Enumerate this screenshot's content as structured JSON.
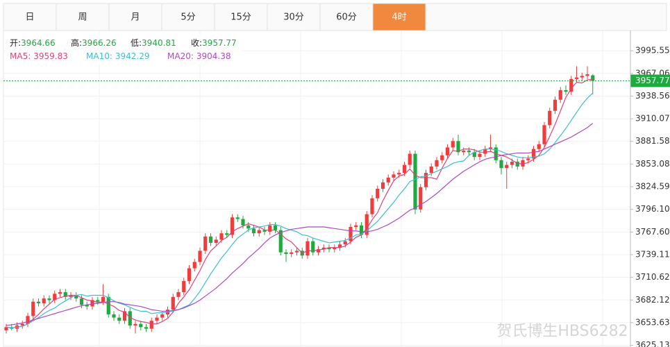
{
  "tabs": [
    "日",
    "周",
    "月",
    "5分",
    "15分",
    "30分",
    "60分",
    "4时"
  ],
  "active_tab": 7,
  "watermark": "贺氏博生HBS6282",
  "chart_data": {
    "type": "candlestick",
    "info": [
      {
        "label": "开:",
        "value": 3964.66
      },
      {
        "label": "高:",
        "value": 3966.26
      },
      {
        "label": "低:",
        "value": 3940.81
      },
      {
        "label": "收:",
        "value": 3957.77
      }
    ],
    "up_color": "#f03c3c",
    "down_color": "#1faa3f",
    "price_line_color": "#1faa3f",
    "ylim": [
      3623,
      4021
    ],
    "yticks": [
      3995.55,
      3967.06,
      3938.56,
      3910.07,
      3881.58,
      3853.08,
      3824.59,
      {
        "value": 3796.1,
        "label": "3796.10"
      },
      {
        "value": 3767.6,
        "label": "3767.60"
      },
      3739.11,
      3710.62,
      3682.12,
      3653.63,
      3625.13
    ],
    "grid": true,
    "open": [
      3644,
      3648,
      3646,
      3650,
      3652,
      3662,
      3680,
      3678,
      3684,
      3682,
      3690,
      3692,
      3686,
      3688,
      3684,
      3676,
      3674,
      3682,
      3680,
      3686,
      3664,
      3660,
      3656,
      3668,
      3650,
      3652,
      3648,
      3646,
      3656,
      3660,
      3664,
      3670,
      3686,
      3692,
      3706,
      3722,
      3730,
      3744,
      3762,
      3754,
      3758,
      3766,
      3764,
      3786,
      3784,
      3776,
      3772,
      3766,
      3770,
      3768,
      3776,
      3770,
      3742,
      3740,
      3742,
      3744,
      3738,
      3756,
      3742,
      3746,
      3748,
      3746,
      3748,
      3752,
      3756,
      3774,
      3776,
      3764,
      3790,
      3810,
      3822,
      3830,
      3836,
      3840,
      3842,
      3852,
      3866,
      3796,
      3824,
      3842,
      3850,
      3858,
      3864,
      3874,
      3882,
      3868,
      3870,
      3868,
      3862,
      3866,
      3872,
      3874,
      3858,
      3848,
      3852,
      3856,
      3850,
      3858,
      3860,
      3872,
      3878,
      3902,
      3920,
      3934,
      3946,
      3944,
      3960,
      3962,
      3964,
      3964.66
    ],
    "high": [
      3652,
      3652,
      3654,
      3656,
      3666,
      3684,
      3684,
      3688,
      3688,
      3694,
      3696,
      3696,
      3692,
      3692,
      3688,
      3680,
      3686,
      3686,
      3702,
      3690,
      3668,
      3664,
      3672,
      3672,
      3656,
      3656,
      3652,
      3660,
      3664,
      3668,
      3674,
      3690,
      3696,
      3710,
      3726,
      3734,
      3748,
      3766,
      3766,
      3762,
      3770,
      3770,
      3790,
      3790,
      3788,
      3780,
      3776,
      3774,
      3774,
      3780,
      3780,
      3774,
      3746,
      3746,
      3748,
      3748,
      3760,
      3760,
      3750,
      3752,
      3752,
      3752,
      3756,
      3760,
      3778,
      3780,
      3780,
      3794,
      3814,
      3826,
      3834,
      3840,
      3844,
      3846,
      3856,
      3870,
      3870,
      3828,
      3846,
      3854,
      3862,
      3868,
      3878,
      3886,
      3890,
      3874,
      3874,
      3872,
      3870,
      3876,
      3890,
      3878,
      3862,
      3856,
      3860,
      3860,
      3862,
      3864,
      3876,
      3882,
      3906,
      3924,
      3938,
      3950,
      3952,
      3964,
      3976,
      3968,
      3976,
      3966.26
    ],
    "low": [
      3640,
      3644,
      3642,
      3646,
      3648,
      3658,
      3674,
      3674,
      3678,
      3678,
      3686,
      3682,
      3682,
      3680,
      3672,
      3670,
      3670,
      3676,
      3676,
      3660,
      3656,
      3652,
      3652,
      3646,
      3640,
      3644,
      3642,
      3642,
      3652,
      3656,
      3660,
      3666,
      3682,
      3688,
      3702,
      3718,
      3726,
      3740,
      3750,
      3750,
      3754,
      3760,
      3760,
      3780,
      3772,
      3768,
      3762,
      3762,
      3764,
      3764,
      3766,
      3738,
      3730,
      3736,
      3738,
      3734,
      3734,
      3738,
      3738,
      3742,
      3742,
      3742,
      3744,
      3748,
      3752,
      3770,
      3760,
      3760,
      3786,
      3806,
      3818,
      3826,
      3832,
      3836,
      3838,
      3848,
      3790,
      3792,
      3820,
      3838,
      3846,
      3854,
      3860,
      3870,
      3864,
      3864,
      3864,
      3858,
      3858,
      3862,
      3868,
      3854,
      3840,
      3822,
      3848,
      3846,
      3846,
      3854,
      3856,
      3868,
      3874,
      3898,
      3916,
      3930,
      3940,
      3940,
      3956,
      3958,
      3960,
      3940.81
    ],
    "close": [
      3648,
      3646,
      3650,
      3652,
      3662,
      3680,
      3678,
      3684,
      3682,
      3690,
      3692,
      3686,
      3688,
      3684,
      3676,
      3674,
      3682,
      3680,
      3686,
      3664,
      3660,
      3656,
      3668,
      3650,
      3652,
      3648,
      3646,
      3656,
      3660,
      3664,
      3670,
      3686,
      3692,
      3706,
      3722,
      3730,
      3744,
      3762,
      3754,
      3758,
      3766,
      3764,
      3786,
      3784,
      3776,
      3772,
      3766,
      3770,
      3768,
      3776,
      3770,
      3742,
      3740,
      3742,
      3744,
      3738,
      3756,
      3742,
      3746,
      3748,
      3746,
      3748,
      3752,
      3756,
      3774,
      3776,
      3764,
      3790,
      3810,
      3822,
      3830,
      3836,
      3840,
      3842,
      3852,
      3866,
      3796,
      3824,
      3842,
      3850,
      3858,
      3864,
      3874,
      3882,
      3868,
      3870,
      3868,
      3862,
      3866,
      3872,
      3874,
      3858,
      3848,
      3852,
      3856,
      3850,
      3858,
      3860,
      3872,
      3878,
      3902,
      3920,
      3934,
      3946,
      3944,
      3960,
      3962,
      3964,
      3966,
      3957.77
    ],
    "series": [
      {
        "name": "MA5:",
        "color": "#e0407a",
        "values": [
          3648,
          3647,
          3648,
          3649,
          3652,
          3658,
          3664,
          3671,
          3677,
          3683,
          3685,
          3687,
          3688,
          3688,
          3685,
          3682,
          3681,
          3679,
          3680,
          3677,
          3674,
          3669,
          3667,
          3660,
          3657,
          3655,
          3654,
          3652,
          3652,
          3655,
          3659,
          3667,
          3678,
          3686,
          3695,
          3707,
          3719,
          3733,
          3744,
          3750,
          3757,
          3761,
          3768,
          3772,
          3775,
          3778,
          3776,
          3774,
          3770,
          3770,
          3770,
          3765,
          3759,
          3755,
          3748,
          3741,
          3744,
          3744,
          3745,
          3746,
          3748,
          3748,
          3748,
          3750,
          3755,
          3761,
          3764,
          3772,
          3783,
          3792,
          3807,
          3820,
          3832,
          3838,
          3840,
          3847,
          3839,
          3836,
          3836,
          3836,
          3834,
          3848,
          3860,
          3870,
          3869,
          3872,
          3872,
          3871,
          3868,
          3868,
          3869,
          3866,
          3864,
          3862,
          3858,
          3854,
          3853,
          3855,
          3859,
          3864,
          3874,
          3888,
          3903,
          3920,
          3937,
          3948,
          3956,
          3955,
          3959,
          3959.83
        ]
      },
      {
        "name": "MA10:",
        "color": "#3bbcd6",
        "values": [
          3648,
          3647,
          3648,
          3649,
          3652,
          3656,
          3660,
          3665,
          3669,
          3672,
          3677,
          3681,
          3685,
          3688,
          3689,
          3687,
          3688,
          3688,
          3688,
          3685,
          3681,
          3678,
          3676,
          3673,
          3670,
          3668,
          3668,
          3665,
          3666,
          3666,
          3667,
          3668,
          3670,
          3673,
          3676,
          3684,
          3693,
          3704,
          3715,
          3725,
          3735,
          3743,
          3752,
          3760,
          3765,
          3770,
          3773,
          3774,
          3775,
          3777,
          3777,
          3775,
          3772,
          3770,
          3768,
          3764,
          3763,
          3760,
          3758,
          3756,
          3754,
          3755,
          3756,
          3757,
          3760,
          3764,
          3765,
          3769,
          3775,
          3781,
          3789,
          3797,
          3805,
          3814,
          3822,
          3831,
          3834,
          3837,
          3838,
          3841,
          3844,
          3847,
          3850,
          3854,
          3856,
          3857,
          3864,
          3868,
          3870,
          3872,
          3872,
          3871,
          3869,
          3866,
          3864,
          3862,
          3861,
          3861,
          3862,
          3863,
          3866,
          3872,
          3880,
          3889,
          3898,
          3908,
          3918,
          3928,
          3936,
          3942.29
        ]
      },
      {
        "name": "MA20:",
        "color": "#b048c0",
        "values": [
          3650,
          3651,
          3652,
          3653,
          3655,
          3657,
          3659,
          3661,
          3663,
          3665,
          3667,
          3669,
          3671,
          3673,
          3675,
          3676,
          3677,
          3678,
          3679,
          3680,
          3680,
          3679,
          3677,
          3676,
          3675,
          3674,
          3672,
          3670,
          3669,
          3668,
          3668,
          3669,
          3670,
          3672,
          3675,
          3678,
          3682,
          3687,
          3692,
          3697,
          3703,
          3709,
          3716,
          3722,
          3728,
          3735,
          3741,
          3747,
          3754,
          3760,
          3764,
          3767,
          3769,
          3771,
          3772,
          3773,
          3774,
          3774,
          3774,
          3774,
          3773,
          3772,
          3771,
          3770,
          3769,
          3769,
          3768,
          3768,
          3769,
          3771,
          3774,
          3777,
          3781,
          3785,
          3790,
          3795,
          3798,
          3802,
          3806,
          3811,
          3816,
          3822,
          3828,
          3834,
          3839,
          3844,
          3848,
          3852,
          3856,
          3859,
          3861,
          3862,
          3864,
          3865,
          3866,
          3867,
          3867,
          3867,
          3868,
          3869,
          3872,
          3875,
          3878,
          3881,
          3884,
          3887,
          3891,
          3895,
          3899,
          3904.38
        ]
      }
    ]
  }
}
